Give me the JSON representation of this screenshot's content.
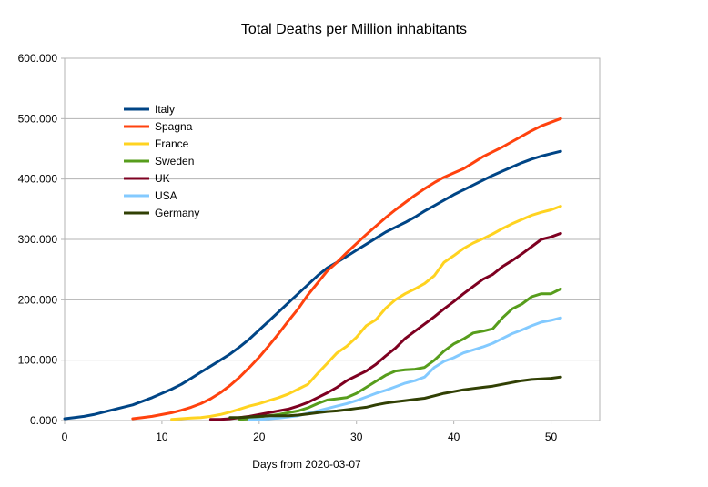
{
  "chart_data": {
    "type": "line",
    "title": "Total Deaths per Million inhabitants",
    "xlabel": "Days from 2020-03-07",
    "ylabel": "",
    "xlim": [
      0,
      55
    ],
    "ylim": [
      0,
      600
    ],
    "x_ticks": [
      0,
      10,
      20,
      30,
      40,
      50
    ],
    "x_tick_labels": [
      "0",
      "10",
      "20",
      "30",
      "40",
      "50"
    ],
    "y_ticks": [
      0,
      100,
      200,
      300,
      400,
      500,
      600
    ],
    "y_tick_labels": [
      "0.000",
      "100.000",
      "200.000",
      "300.000",
      "400.000",
      "500.000",
      "600.000"
    ],
    "grid": "horizontal",
    "legend_position": "upper-left inside plot",
    "series": [
      {
        "name": "Italy",
        "color": "#004586",
        "x": [
          0,
          1,
          2,
          3,
          4,
          5,
          6,
          7,
          8,
          9,
          10,
          11,
          12,
          13,
          14,
          15,
          16,
          17,
          18,
          19,
          20,
          21,
          22,
          23,
          24,
          25,
          26,
          27,
          28,
          29,
          30,
          31,
          32,
          33,
          34,
          35,
          36,
          37,
          38,
          39,
          40,
          41,
          42,
          43,
          44,
          45,
          46,
          47,
          48,
          49,
          50,
          51
        ],
        "y": [
          3,
          5,
          7,
          10,
          14,
          18,
          22,
          26,
          32,
          38,
          45,
          52,
          60,
          70,
          80,
          90,
          100,
          110,
          122,
          135,
          150,
          165,
          180,
          195,
          210,
          225,
          240,
          253,
          262,
          272,
          282,
          292,
          302,
          312,
          320,
          328,
          337,
          347,
          356,
          365,
          374,
          382,
          390,
          398,
          406,
          413,
          420,
          427,
          433,
          438,
          442,
          446
        ]
      },
      {
        "name": "Spagna",
        "color": "#ff420e",
        "x": [
          7,
          8,
          9,
          10,
          11,
          12,
          13,
          14,
          15,
          16,
          17,
          18,
          19,
          20,
          21,
          22,
          23,
          24,
          25,
          26,
          27,
          28,
          29,
          30,
          31,
          32,
          33,
          34,
          35,
          36,
          37,
          38,
          39,
          40,
          41,
          42,
          43,
          44,
          45,
          46,
          47,
          48,
          49,
          50,
          51
        ],
        "y": [
          3,
          5,
          7,
          10,
          13,
          17,
          22,
          28,
          36,
          46,
          58,
          72,
          88,
          105,
          124,
          144,
          165,
          185,
          208,
          228,
          248,
          262,
          278,
          293,
          308,
          322,
          336,
          349,
          361,
          373,
          384,
          394,
          403,
          410,
          417,
          427,
          437,
          445,
          453,
          462,
          471,
          480,
          488,
          494,
          500
        ]
      },
      {
        "name": "France",
        "color": "#ffd320",
        "x": [
          11,
          12,
          13,
          14,
          15,
          16,
          17,
          18,
          19,
          20,
          21,
          22,
          23,
          24,
          25,
          26,
          27,
          28,
          29,
          30,
          31,
          32,
          33,
          34,
          35,
          36,
          37,
          38,
          39,
          40,
          41,
          42,
          43,
          44,
          45,
          46,
          47,
          48,
          49,
          50,
          51
        ],
        "y": [
          2,
          3,
          4,
          5,
          7,
          10,
          14,
          19,
          24,
          28,
          33,
          38,
          44,
          52,
          60,
          78,
          95,
          112,
          123,
          138,
          157,
          167,
          186,
          200,
          210,
          218,
          227,
          240,
          262,
          273,
          285,
          294,
          301,
          309,
          318,
          326,
          333,
          340,
          345,
          349,
          355
        ]
      },
      {
        "name": "Sweden",
        "color": "#579d1c",
        "x": [
          18,
          19,
          20,
          21,
          22,
          23,
          24,
          25,
          26,
          27,
          28,
          29,
          30,
          31,
          32,
          33,
          34,
          35,
          36,
          37,
          38,
          39,
          40,
          41,
          42,
          43,
          44,
          45,
          46,
          47,
          48,
          49,
          50,
          51
        ],
        "y": [
          2,
          3,
          6,
          8,
          10,
          13,
          16,
          21,
          28,
          34,
          36,
          38,
          45,
          55,
          65,
          75,
          82,
          84,
          85,
          88,
          100,
          115,
          127,
          135,
          145,
          148,
          152,
          170,
          185,
          193,
          205,
          210,
          210,
          218
        ]
      },
      {
        "name": "UK",
        "color": "#7e0021",
        "x": [
          15,
          16,
          17,
          18,
          19,
          20,
          21,
          22,
          23,
          24,
          25,
          26,
          27,
          28,
          29,
          30,
          31,
          32,
          33,
          34,
          35,
          36,
          37,
          38,
          39,
          40,
          41,
          42,
          43,
          44,
          45,
          46,
          47,
          48,
          49,
          50,
          51
        ],
        "y": [
          2,
          2,
          3,
          5,
          7,
          10,
          13,
          16,
          19,
          24,
          30,
          38,
          46,
          55,
          66,
          74,
          82,
          93,
          107,
          120,
          136,
          148,
          160,
          172,
          185,
          197,
          210,
          222,
          234,
          242,
          255,
          265,
          276,
          288,
          300,
          304,
          310
        ]
      },
      {
        "name": "USA",
        "color": "#83caff",
        "x": [
          19,
          20,
          21,
          22,
          23,
          24,
          25,
          26,
          27,
          28,
          29,
          30,
          31,
          32,
          33,
          34,
          35,
          36,
          37,
          38,
          39,
          40,
          41,
          42,
          43,
          44,
          45,
          46,
          47,
          48,
          49,
          50,
          51
        ],
        "y": [
          1,
          2,
          3,
          4,
          6,
          8,
          12,
          16,
          20,
          24,
          28,
          33,
          39,
          45,
          50,
          56,
          62,
          66,
          72,
          88,
          98,
          104,
          112,
          117,
          122,
          128,
          136,
          144,
          150,
          157,
          163,
          166,
          170
        ]
      },
      {
        "name": "Germany",
        "color": "#314004",
        "x": [
          17,
          18,
          19,
          20,
          21,
          22,
          23,
          24,
          25,
          26,
          27,
          28,
          29,
          30,
          31,
          32,
          33,
          34,
          35,
          36,
          37,
          38,
          39,
          40,
          41,
          42,
          43,
          44,
          45,
          46,
          47,
          48,
          49,
          50,
          51
        ],
        "y": [
          5,
          5,
          6,
          7,
          8,
          8,
          8,
          9,
          11,
          13,
          15,
          16,
          18,
          20,
          22,
          26,
          29,
          31,
          33,
          35,
          37,
          41,
          45,
          48,
          51,
          53,
          55,
          57,
          60,
          63,
          66,
          68,
          69,
          70,
          72
        ]
      }
    ]
  }
}
